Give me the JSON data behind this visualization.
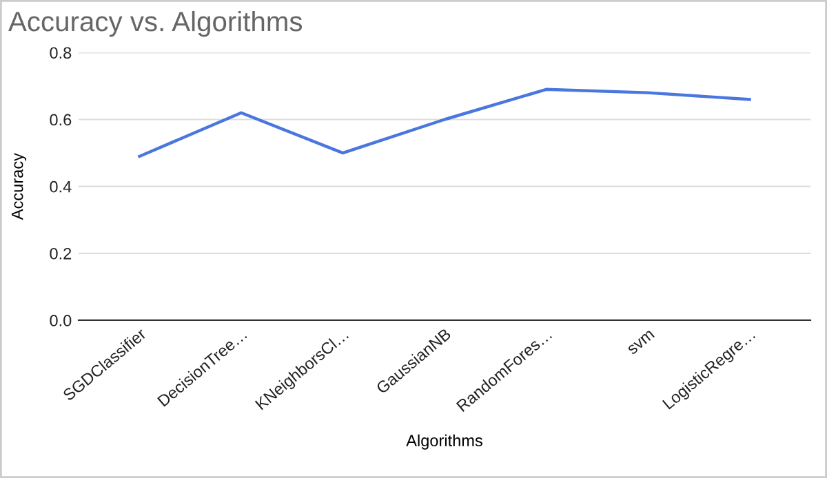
{
  "chart_data": {
    "type": "line",
    "title": "Accuracy vs. Algorithms",
    "xlabel": "Algorithms",
    "ylabel": "Accuracy",
    "categories": [
      "SGDClassifier",
      "DecisionTree…",
      "KNeighborsCl…",
      "GaussianNB",
      "RandomFores…",
      "svm",
      "LogisticRegre…"
    ],
    "series": [
      {
        "color": "#4a77de",
        "values": [
          0.49,
          0.62,
          0.5,
          0.6,
          0.69,
          0.68,
          0.66
        ]
      }
    ],
    "ylim": [
      0,
      0.8
    ],
    "yticks": [
      {
        "value": 0,
        "label": "0.0"
      },
      {
        "value": 0.2,
        "label": "0.2"
      },
      {
        "value": 0.4,
        "label": "0.4"
      },
      {
        "value": 0.6,
        "label": "0.6"
      },
      {
        "value": 0.8,
        "label": "0.8"
      }
    ],
    "grid": "y",
    "marker": "none",
    "line_style": "solid"
  }
}
